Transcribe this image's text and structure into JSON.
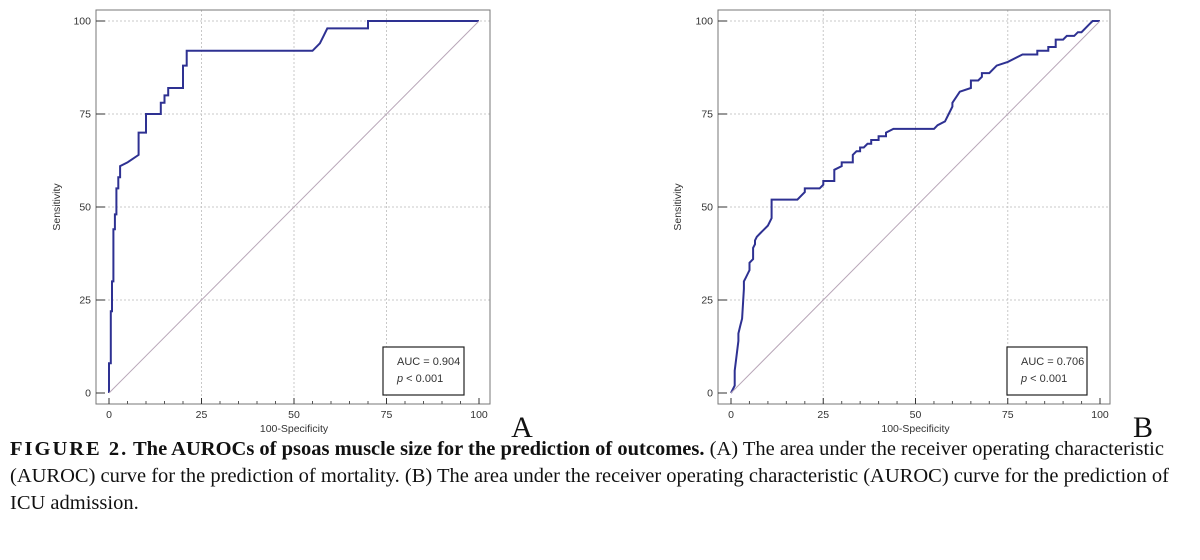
{
  "colors": {
    "curve": "#2e3192",
    "diagonal": "#b8a6b8",
    "grid": "#c8c8c8",
    "frame": "#777777"
  },
  "chart_data": [
    {
      "type": "line",
      "panel_label": "A",
      "xlabel": "100-Specificity",
      "ylabel": "Sensitivity",
      "xlim": [
        0,
        100
      ],
      "ylim": [
        0,
        100
      ],
      "xticks": [
        0,
        25,
        50,
        75,
        100
      ],
      "yticks": [
        0,
        25,
        50,
        75,
        100
      ],
      "grid": true,
      "series": [
        {
          "role": "roc",
          "x": [
            0,
            0,
            0.5,
            0.5,
            0.8,
            0.8,
            1.2,
            1.2,
            1.6,
            1.6,
            2,
            2,
            2.5,
            2.5,
            3,
            3,
            5,
            8,
            8,
            10,
            10,
            14,
            14,
            15,
            15,
            16,
            16,
            20,
            20,
            21,
            21,
            24,
            55,
            57,
            58,
            59,
            70,
            70,
            75,
            100
          ],
          "y": [
            0,
            8,
            8,
            22,
            22,
            30,
            30,
            44,
            44,
            48,
            48,
            55,
            55,
            58,
            58,
            61,
            62,
            64,
            70,
            70,
            75,
            75,
            78,
            78,
            80,
            80,
            82,
            82,
            88,
            88,
            92,
            92,
            92,
            94,
            96,
            98,
            98,
            100,
            100,
            100
          ]
        },
        {
          "role": "reference",
          "x": [
            0,
            100
          ],
          "y": [
            0,
            100
          ]
        }
      ],
      "annotation": {
        "auc": "AUC = 0.904",
        "p_italic": "p",
        "p_rest": " < 0.001"
      }
    },
    {
      "type": "line",
      "panel_label": "B",
      "xlabel": "100-Specificity",
      "ylabel": "Sensitivity",
      "xlim": [
        0,
        100
      ],
      "ylim": [
        0,
        100
      ],
      "xticks": [
        0,
        25,
        50,
        75,
        100
      ],
      "yticks": [
        0,
        25,
        50,
        75,
        100
      ],
      "grid": true,
      "series": [
        {
          "role": "roc",
          "x": [
            0,
            1,
            1,
            2,
            2,
            2.5,
            3,
            3.5,
            3.5,
            4,
            4.5,
            5,
            5,
            6,
            6,
            6.5,
            6.5,
            7,
            8,
            9,
            10,
            11,
            11,
            18,
            19,
            20,
            20,
            24,
            25,
            25,
            28,
            28,
            30,
            30,
            33,
            33,
            34,
            35,
            35,
            36,
            37,
            38,
            38,
            40,
            40,
            42,
            42,
            44,
            45,
            55,
            56,
            58,
            59,
            60,
            60,
            62,
            65,
            65,
            67,
            68,
            68,
            70,
            72,
            75,
            75,
            79,
            83,
            83,
            86,
            86,
            88,
            88,
            90,
            91,
            93,
            94,
            95,
            96,
            97,
            98,
            100
          ],
          "y": [
            0,
            2,
            6,
            14,
            16,
            18,
            20,
            28,
            30,
            31,
            32,
            33,
            35,
            36,
            39,
            40,
            41,
            42,
            43,
            44,
            45,
            47,
            52,
            52,
            53,
            54,
            55,
            55,
            56,
            57,
            57,
            60,
            61,
            62,
            62,
            64,
            65,
            65,
            66,
            66,
            67,
            67,
            68,
            68,
            69,
            69,
            70,
            71,
            71,
            71,
            72,
            73,
            75,
            77,
            78,
            81,
            82,
            84,
            84,
            85,
            86,
            86,
            88,
            89,
            89,
            91,
            91,
            92,
            92,
            93,
            93,
            95,
            95,
            96,
            96,
            97,
            97,
            98,
            99,
            100,
            100
          ]
        },
        {
          "role": "reference",
          "x": [
            0,
            100
          ],
          "y": [
            0,
            100
          ]
        }
      ],
      "annotation": {
        "auc": "AUC = 0.706",
        "p_italic": "p",
        "p_rest": " < 0.001"
      }
    }
  ],
  "caption": {
    "label": "FIGURE 2.",
    "title": " The AUROCs of psoas muscle size for the prediction of outcomes.",
    "body": " (A) The area under the receiver operating characteristic (AUROC) curve for the prediction of mortality. (B) The area under the receiver operating characteristic (AUROC) curve for the prediction of ICU admission."
  }
}
